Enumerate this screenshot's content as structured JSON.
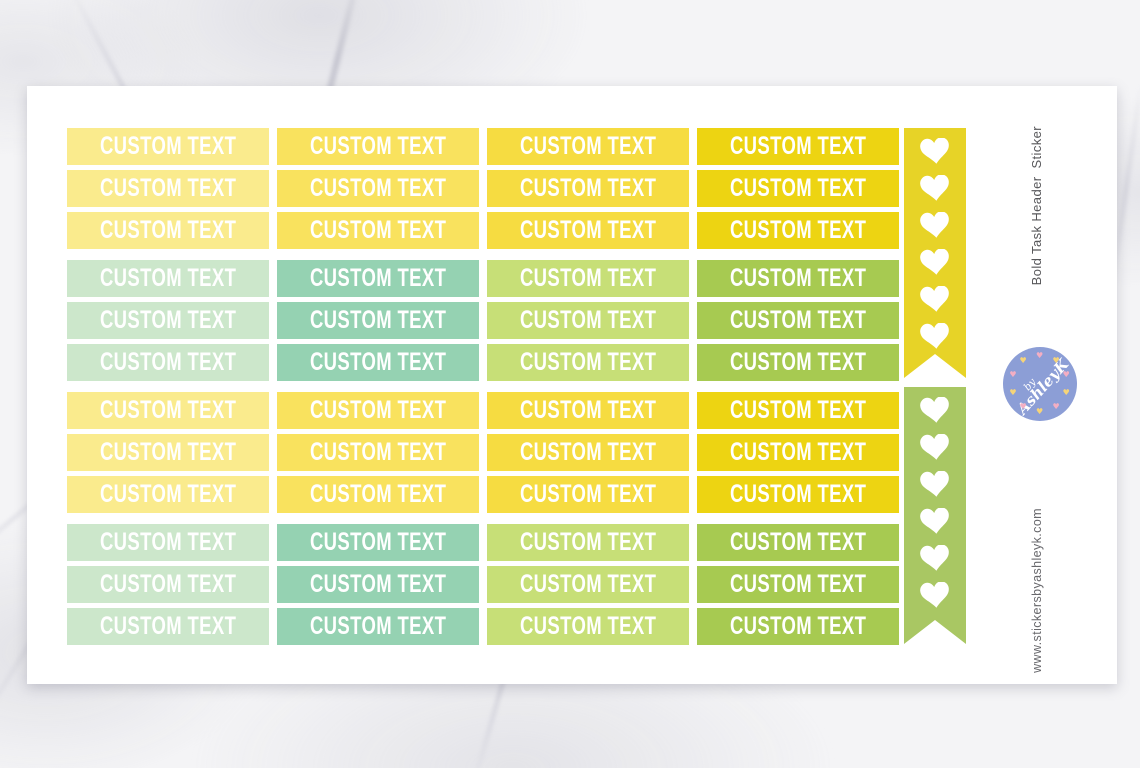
{
  "sheet": {
    "sticker_text": "CUSTOM TEXT",
    "columns": 4,
    "rows_per_group": 3,
    "group_palettes": [
      [
        "#faeb8d",
        "#f9e25e",
        "#f6dc41",
        "#edd412"
      ],
      [
        "#cce7cb",
        "#95d2b2",
        "#c7df77",
        "#a7ca51"
      ],
      [
        "#faeb8d",
        "#f9e25e",
        "#f6dc41",
        "#edd412"
      ],
      [
        "#cce7cb",
        "#95d2b2",
        "#c7df77",
        "#a7ca51"
      ]
    ],
    "sticker_text_color": "#ffffff"
  },
  "strips": [
    {
      "name": "yellow-heart-checklist-flag",
      "color": "#e7d327",
      "heart_count": 6,
      "heart_color": "#ffffff"
    },
    {
      "name": "green-heart-checklist-flag",
      "color": "#a9c763",
      "heart_count": 6,
      "heart_color": "#ffffff"
    }
  ],
  "side": {
    "product_label": "Bold Task Header  Sticker",
    "website": "www.stickersbyashleyk.com"
  },
  "logo": {
    "by_text": "by",
    "name_text": "AshleyK",
    "circle_color": "#8c9ed6",
    "text_color": "#ffffff",
    "ring_heart_colors": [
      "#f3aec3",
      "#f6d478"
    ]
  }
}
